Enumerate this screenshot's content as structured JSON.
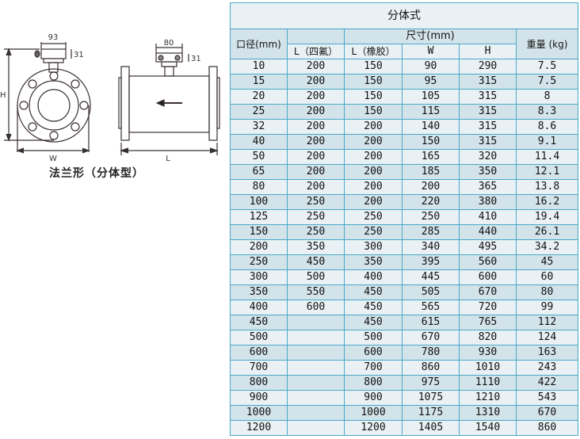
{
  "diagram": {
    "caption": "法兰形（分体型）",
    "dims": {
      "front_width": "93",
      "front_height": "31",
      "side_width": "80",
      "side_height": "31",
      "H": "H",
      "W": "W",
      "L": "L"
    }
  },
  "table": {
    "title": "分体式",
    "headers": {
      "dn": "口径(mm)",
      "size_group": "尺寸(mm)",
      "l_ptfe": "L（四氟）",
      "l_rubber": "L（橡胶）",
      "w": "W",
      "h": "H",
      "weight": "重量 (kg)"
    },
    "rows": [
      [
        "10",
        "200",
        "150",
        "90",
        "290",
        "7.5"
      ],
      [
        "15",
        "200",
        "150",
        "95",
        "315",
        "7.5"
      ],
      [
        "20",
        "200",
        "150",
        "105",
        "315",
        "8"
      ],
      [
        "25",
        "200",
        "150",
        "115",
        "315",
        "8.3"
      ],
      [
        "32",
        "200",
        "200",
        "140",
        "315",
        "8.6"
      ],
      [
        "40",
        "200",
        "200",
        "150",
        "315",
        "9.1"
      ],
      [
        "50",
        "200",
        "200",
        "165",
        "320",
        "11.4"
      ],
      [
        "65",
        "200",
        "200",
        "185",
        "350",
        "12.1"
      ],
      [
        "80",
        "200",
        "200",
        "200",
        "365",
        "13.8"
      ],
      [
        "100",
        "250",
        "200",
        "220",
        "380",
        "16.2"
      ],
      [
        "125",
        "250",
        "250",
        "250",
        "410",
        "19.4"
      ],
      [
        "150",
        "250",
        "250",
        "285",
        "440",
        "26.1"
      ],
      [
        "200",
        "350",
        "300",
        "340",
        "495",
        "34.2"
      ],
      [
        "250",
        "450",
        "350",
        "395",
        "560",
        "45"
      ],
      [
        "300",
        "500",
        "400",
        "445",
        "600",
        "60"
      ],
      [
        "350",
        "550",
        "450",
        "505",
        "670",
        "80"
      ],
      [
        "400",
        "600",
        "450",
        "565",
        "720",
        "99"
      ],
      [
        "450",
        "",
        "450",
        "615",
        "765",
        "112"
      ],
      [
        "500",
        "",
        "500",
        "670",
        "820",
        "124"
      ],
      [
        "600",
        "",
        "600",
        "780",
        "930",
        "163"
      ],
      [
        "700",
        "",
        "700",
        "860",
        "1010",
        "243"
      ],
      [
        "800",
        "",
        "800",
        "975",
        "1110",
        "422"
      ],
      [
        "900",
        "",
        "900",
        "1075",
        "1210",
        "543"
      ],
      [
        "1000",
        "",
        "1000",
        "1175",
        "1310",
        "670"
      ],
      [
        "1200",
        "",
        "1200",
        "1405",
        "1540",
        "860"
      ]
    ]
  }
}
